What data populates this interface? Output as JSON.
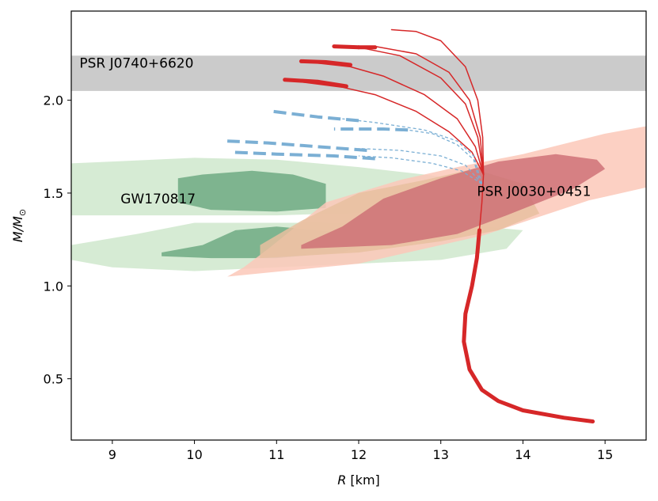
{
  "chart_data": {
    "type": "line",
    "title": "",
    "xlabel_var": "R",
    "xlabel_unit": " [km]",
    "ylabel_var": "M/M",
    "ylabel_sub": "⊙",
    "xlim": [
      8.5,
      15.5
    ],
    "ylim": [
      0.17,
      2.48
    ],
    "xticks": [
      9,
      10,
      11,
      12,
      13,
      14,
      15
    ],
    "yticks": [
      0.5,
      1.0,
      1.5,
      2.0
    ],
    "yticklabels": [
      "0.5",
      "1.0",
      "1.5",
      "2.0"
    ],
    "grid": false,
    "colors": {
      "red_curve": "#d62728",
      "blue_curve": "#7bafd4",
      "band": "#cbcbcb",
      "gw_light": "#cfe8cc",
      "gw_dark": "#6eaa83",
      "nicer_light": "#fcc8b8",
      "nicer_mid": "#e8c0a0",
      "nicer_dark": "#cc6c73"
    },
    "bands": [
      {
        "name": "PSR J0740+6620",
        "ymin": 2.05,
        "ymax": 2.24
      }
    ],
    "annotations": [
      {
        "name": "band-label",
        "text": "PSR J0740+6620",
        "x": 8.6,
        "y": 2.2
      },
      {
        "name": "gw-label",
        "text": "GW170817",
        "x": 9.1,
        "y": 1.47
      },
      {
        "name": "nicer-label",
        "text": "PSR J0030+0451",
        "x": 13.44,
        "y": 1.51
      }
    ],
    "regions": [
      {
        "name": "gw170817-outer-upper",
        "fill": "gw_light",
        "points": [
          [
            8.5,
            1.66
          ],
          [
            9.0,
            1.67
          ],
          [
            10.0,
            1.69
          ],
          [
            11.0,
            1.68
          ],
          [
            12.0,
            1.64
          ],
          [
            12.8,
            1.6
          ],
          [
            13.5,
            1.56
          ],
          [
            14.0,
            1.5
          ],
          [
            13.5,
            1.42
          ],
          [
            12.5,
            1.4
          ],
          [
            11.0,
            1.38
          ],
          [
            10.0,
            1.38
          ],
          [
            9.0,
            1.38
          ],
          [
            8.5,
            1.38
          ]
        ]
      },
      {
        "name": "gw170817-outer-lower",
        "fill": "gw_light",
        "points": [
          [
            8.5,
            1.22
          ],
          [
            9.3,
            1.28
          ],
          [
            10.0,
            1.34
          ],
          [
            11.5,
            1.34
          ],
          [
            12.5,
            1.33
          ],
          [
            13.5,
            1.32
          ],
          [
            14.0,
            1.3
          ],
          [
            13.8,
            1.2
          ],
          [
            13.0,
            1.14
          ],
          [
            12.0,
            1.12
          ],
          [
            11.0,
            1.1
          ],
          [
            10.0,
            1.08
          ],
          [
            9.0,
            1.1
          ],
          [
            8.5,
            1.14
          ]
        ]
      },
      {
        "name": "gw170817-inner-upper",
        "fill": "gw_dark",
        "points": [
          [
            9.8,
            1.5
          ],
          [
            9.8,
            1.58
          ],
          [
            10.1,
            1.6
          ],
          [
            10.7,
            1.62
          ],
          [
            11.2,
            1.6
          ],
          [
            11.6,
            1.55
          ],
          [
            11.6,
            1.42
          ],
          [
            11.0,
            1.4
          ],
          [
            10.2,
            1.41
          ],
          [
            9.8,
            1.45
          ]
        ]
      },
      {
        "name": "gw170817-inner-lower",
        "fill": "gw_dark",
        "points": [
          [
            9.6,
            1.18
          ],
          [
            10.1,
            1.22
          ],
          [
            10.5,
            1.3
          ],
          [
            11.0,
            1.32
          ],
          [
            11.5,
            1.3
          ],
          [
            12.0,
            1.28
          ],
          [
            12.2,
            1.24
          ],
          [
            11.8,
            1.18
          ],
          [
            11.0,
            1.15
          ],
          [
            10.2,
            1.15
          ],
          [
            9.6,
            1.16
          ]
        ]
      },
      {
        "name": "nicer-outer",
        "fill": "nicer_light",
        "points": [
          [
            10.4,
            1.05
          ],
          [
            12.0,
            1.12
          ],
          [
            13.5,
            1.27
          ],
          [
            14.8,
            1.46
          ],
          [
            15.5,
            1.53
          ],
          [
            15.5,
            1.86
          ],
          [
            15.0,
            1.82
          ],
          [
            14.0,
            1.71
          ],
          [
            13.2,
            1.64
          ],
          [
            12.5,
            1.57
          ],
          [
            11.6,
            1.45
          ],
          [
            10.9,
            1.2
          ],
          [
            10.6,
            1.1
          ]
        ]
      },
      {
        "name": "nicer-mid",
        "fill": "nicer_mid",
        "points": [
          [
            10.8,
            1.15
          ],
          [
            12.0,
            1.18
          ],
          [
            13.0,
            1.24
          ],
          [
            13.7,
            1.3
          ],
          [
            14.2,
            1.39
          ],
          [
            14.0,
            1.55
          ],
          [
            13.4,
            1.63
          ],
          [
            12.8,
            1.57
          ],
          [
            12.0,
            1.5
          ],
          [
            11.3,
            1.35
          ],
          [
            10.8,
            1.22
          ]
        ]
      },
      {
        "name": "nicer-inner",
        "fill": "nicer_dark",
        "points": [
          [
            11.3,
            1.2
          ],
          [
            12.4,
            1.22
          ],
          [
            13.2,
            1.28
          ],
          [
            13.8,
            1.38
          ],
          [
            14.6,
            1.52
          ],
          [
            15.0,
            1.63
          ],
          [
            14.9,
            1.68
          ],
          [
            14.4,
            1.71
          ],
          [
            13.7,
            1.67
          ],
          [
            13.0,
            1.58
          ],
          [
            12.3,
            1.47
          ],
          [
            11.8,
            1.32
          ],
          [
            11.3,
            1.22
          ]
        ]
      }
    ],
    "series": [
      {
        "name": "red-main-stable",
        "style": "solid",
        "color": "red_curve",
        "width": 5,
        "points": [
          [
            14.85,
            0.27
          ],
          [
            14.5,
            0.29
          ],
          [
            14.0,
            0.33
          ],
          [
            13.7,
            0.38
          ],
          [
            13.5,
            0.44
          ],
          [
            13.35,
            0.55
          ],
          [
            13.28,
            0.7
          ],
          [
            13.3,
            0.85
          ],
          [
            13.38,
            1.0
          ],
          [
            13.44,
            1.15
          ],
          [
            13.47,
            1.3
          ]
        ]
      },
      {
        "name": "red-branch-1-thin",
        "style": "solid",
        "color": "red_curve",
        "width": 1.5,
        "points": [
          [
            13.47,
            1.3
          ],
          [
            13.5,
            1.45
          ],
          [
            13.52,
            1.6
          ],
          [
            13.51,
            1.8
          ],
          [
            13.45,
            2.0
          ],
          [
            13.3,
            2.18
          ],
          [
            13.0,
            2.32
          ],
          [
            12.7,
            2.37
          ],
          [
            12.4,
            2.38
          ]
        ]
      },
      {
        "name": "red-branch-2-thin",
        "style": "solid",
        "color": "red_curve",
        "width": 1.5,
        "points": [
          [
            13.52,
            1.6
          ],
          [
            13.48,
            1.8
          ],
          [
            13.35,
            2.0
          ],
          [
            13.1,
            2.15
          ],
          [
            12.7,
            2.25
          ],
          [
            12.2,
            2.29
          ],
          [
            12.0,
            2.29
          ]
        ]
      },
      {
        "name": "red-branch-2-thick",
        "style": "solid",
        "color": "red_curve",
        "width": 5,
        "points": [
          [
            12.2,
            2.285
          ],
          [
            12.0,
            2.285
          ]
        ]
      },
      {
        "name": "red-branch-3-thin",
        "style": "solid",
        "color": "red_curve",
        "width": 1.5,
        "points": [
          [
            13.52,
            1.6
          ],
          [
            13.45,
            1.8
          ],
          [
            13.3,
            1.98
          ],
          [
            13.0,
            2.12
          ],
          [
            12.5,
            2.24
          ],
          [
            12.0,
            2.285
          ],
          [
            11.7,
            2.29
          ]
        ]
      },
      {
        "name": "red-branch-3-thick",
        "style": "solid",
        "color": "red_curve",
        "width": 5,
        "points": [
          [
            12.0,
            2.285
          ],
          [
            11.7,
            2.29
          ]
        ]
      },
      {
        "name": "red-branch-4-thin",
        "style": "solid",
        "color": "red_curve",
        "width": 1.5,
        "points": [
          [
            13.52,
            1.6
          ],
          [
            13.42,
            1.75
          ],
          [
            13.2,
            1.9
          ],
          [
            12.8,
            2.03
          ],
          [
            12.3,
            2.13
          ],
          [
            11.9,
            2.18
          ],
          [
            11.3,
            2.21
          ]
        ]
      },
      {
        "name": "red-branch-4-thick",
        "style": "solid",
        "color": "red_curve",
        "width": 5,
        "points": [
          [
            11.9,
            2.19
          ],
          [
            11.6,
            2.205
          ],
          [
            11.3,
            2.21
          ]
        ]
      },
      {
        "name": "red-branch-5-thin",
        "style": "solid",
        "color": "red_curve",
        "width": 1.5,
        "points": [
          [
            13.52,
            1.6
          ],
          [
            13.38,
            1.72
          ],
          [
            13.1,
            1.83
          ],
          [
            12.7,
            1.94
          ],
          [
            12.2,
            2.03
          ],
          [
            11.8,
            2.07
          ],
          [
            11.1,
            2.11
          ]
        ]
      },
      {
        "name": "red-branch-5-thick",
        "style": "solid",
        "color": "red_curve",
        "width": 5,
        "points": [
          [
            11.85,
            2.075
          ],
          [
            11.5,
            2.1
          ],
          [
            11.1,
            2.11
          ]
        ]
      },
      {
        "name": "blue-1-thin",
        "style": "dashed-thin",
        "color": "blue_curve",
        "width": 1.3,
        "points": [
          [
            13.5,
            1.55
          ],
          [
            13.4,
            1.7
          ],
          [
            13.2,
            1.78
          ],
          [
            12.8,
            1.84
          ],
          [
            12.2,
            1.88
          ],
          [
            11.8,
            1.9
          ]
        ]
      },
      {
        "name": "blue-1-thick",
        "style": "dashed",
        "color": "blue_curve",
        "width": 4,
        "points": [
          [
            12.0,
            1.89
          ],
          [
            11.5,
            1.91
          ],
          [
            10.95,
            1.94
          ]
        ]
      },
      {
        "name": "blue-2-thin",
        "style": "dashed-thin",
        "color": "blue_curve",
        "width": 1.3,
        "points": [
          [
            13.48,
            1.55
          ],
          [
            13.4,
            1.68
          ],
          [
            13.2,
            1.76
          ],
          [
            12.9,
            1.82
          ],
          [
            12.6,
            1.84
          ]
        ]
      },
      {
        "name": "blue-2-thick",
        "style": "dashed",
        "color": "blue_curve",
        "width": 4,
        "points": [
          [
            12.6,
            1.84
          ],
          [
            12.3,
            1.845
          ],
          [
            11.7,
            1.845
          ]
        ]
      },
      {
        "name": "blue-3-thin",
        "style": "dashed-thin",
        "color": "blue_curve",
        "width": 1.3,
        "points": [
          [
            13.5,
            1.55
          ],
          [
            13.3,
            1.65
          ],
          [
            13.0,
            1.7
          ],
          [
            12.5,
            1.73
          ],
          [
            12.0,
            1.74
          ]
        ]
      },
      {
        "name": "blue-3-thick",
        "style": "dashed",
        "color": "blue_curve",
        "width": 4,
        "points": [
          [
            12.1,
            1.73
          ],
          [
            11.5,
            1.75
          ],
          [
            10.9,
            1.77
          ],
          [
            10.4,
            1.78
          ]
        ]
      },
      {
        "name": "blue-4-thin",
        "style": "dashed-thin",
        "color": "blue_curve",
        "width": 1.3,
        "points": [
          [
            13.5,
            1.55
          ],
          [
            13.25,
            1.62
          ],
          [
            12.9,
            1.66
          ],
          [
            12.4,
            1.69
          ],
          [
            12.0,
            1.7
          ]
        ]
      },
      {
        "name": "blue-4-thick",
        "style": "dashed",
        "color": "blue_curve",
        "width": 4,
        "points": [
          [
            12.2,
            1.685
          ],
          [
            11.7,
            1.7
          ],
          [
            11.0,
            1.71
          ],
          [
            10.45,
            1.72
          ]
        ]
      }
    ]
  }
}
